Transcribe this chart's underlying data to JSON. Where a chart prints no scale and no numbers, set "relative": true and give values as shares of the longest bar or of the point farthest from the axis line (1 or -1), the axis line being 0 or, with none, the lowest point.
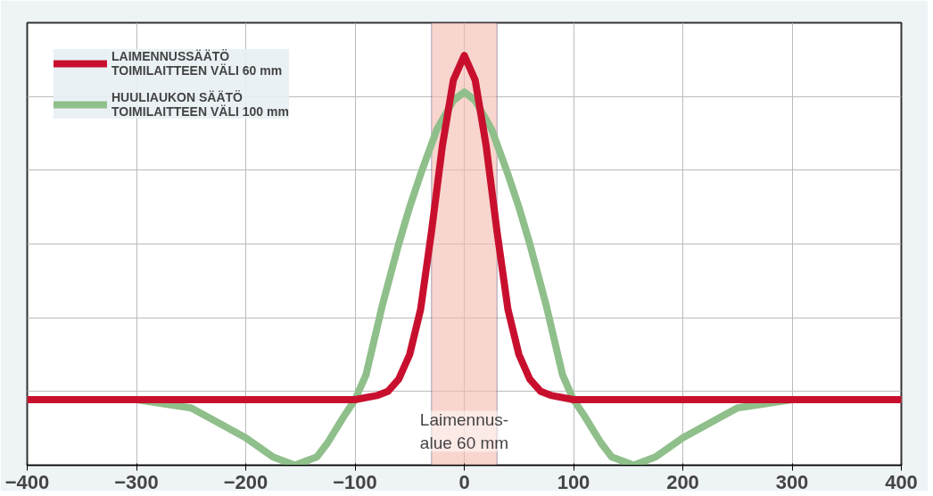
{
  "chart_data": {
    "type": "line",
    "relative": true,
    "xlim": [
      -400,
      400
    ],
    "xticks": [
      -400,
      -300,
      -200,
      -100,
      0,
      100,
      200,
      300,
      400
    ],
    "grid": true,
    "legend": "top left",
    "line_style": "solid",
    "marker": "none",
    "series": [
      {
        "name": "HUULIAUKON SÄÄTÖ\nTOIMILAITTEEN VÄLI 100 mm",
        "color": "#8fbf8a",
        "x": [
          -400,
          -300,
          -250,
          -200,
          -175,
          -155,
          -135,
          -125,
          -110,
          -100,
          -90,
          -75,
          -60,
          -50,
          -40,
          -25,
          -10,
          0,
          10,
          25,
          40,
          50,
          60,
          75,
          90,
          100,
          110,
          125,
          135,
          155,
          175,
          200,
          250,
          300,
          400
        ],
        "values": [
          0.16,
          0.16,
          0.14,
          0.067,
          0.02,
          0,
          0.02,
          0.055,
          0.12,
          0.16,
          0.22,
          0.39,
          0.54,
          0.63,
          0.71,
          0.82,
          0.89,
          0.911,
          0.89,
          0.82,
          0.71,
          0.63,
          0.54,
          0.39,
          0.22,
          0.16,
          0.12,
          0.055,
          0.02,
          0,
          0.02,
          0.067,
          0.14,
          0.16,
          0.16
        ]
      },
      {
        "name": "LAIMENNUSSÄÄTÖ\nTOIMILAITTEEN VÄLI 60 mm",
        "color": "#c8102e",
        "x": [
          -400,
          -100,
          -80,
          -70,
          -60,
          -50,
          -40,
          -30,
          -20,
          -10,
          0,
          10,
          20,
          30,
          40,
          50,
          60,
          70,
          80,
          100,
          400
        ],
        "values": [
          0.16,
          0.16,
          0.17,
          0.18,
          0.21,
          0.27,
          0.38,
          0.57,
          0.78,
          0.94,
          1,
          0.94,
          0.78,
          0.57,
          0.38,
          0.27,
          0.21,
          0.18,
          0.17,
          0.16,
          0.16
        ]
      }
    ],
    "bands": [
      {
        "axis": "x",
        "from": -30,
        "to": 30,
        "label": "Laimennus-\nalue 60 mm",
        "color": "#f4b9ae"
      }
    ]
  }
}
